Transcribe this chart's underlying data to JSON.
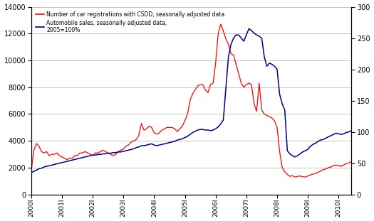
{
  "legend1": "Number of car registrations with CSDD, seasonally adjusted data",
  "legend2": "Automobile sales, seasonally adjusted data,\n2005=100%",
  "left_ylim": [
    0,
    14000
  ],
  "right_ylim": [
    0,
    300
  ],
  "left_yticks": [
    0,
    2000,
    4000,
    6000,
    8000,
    10000,
    12000,
    14000
  ],
  "right_yticks": [
    0,
    50,
    100,
    150,
    200,
    250,
    300
  ],
  "line1_color": "#FF0000",
  "line2_color": "#00008B",
  "background_color": "#FFFFFF",
  "x_labels": [
    "2000I",
    "2001I",
    "2002I",
    "2003I",
    "2004I",
    "2005I",
    "2006I",
    "2007I",
    "2008I",
    "2009I",
    "2010I"
  ],
  "registrations": [
    1800,
    3300,
    3800,
    3600,
    3200,
    3100,
    3200,
    2900,
    3000,
    3000,
    3100,
    2900,
    2800,
    2700,
    2600,
    2700,
    2700,
    2900,
    2900,
    3100,
    3100,
    3200,
    3100,
    3000,
    2900,
    3100,
    3100,
    3200,
    3300,
    3200,
    3100,
    3000,
    2900,
    3000,
    3200,
    3300,
    3400,
    3600,
    3700,
    3900,
    4000,
    4100,
    4400,
    5300,
    4800,
    4900,
    5100,
    5000,
    4600,
    4500,
    4600,
    4800,
    4900,
    5000,
    5000,
    5000,
    4900,
    4700,
    4900,
    5100,
    5500,
    6000,
    7000,
    7500,
    7800,
    8100,
    8200,
    8200,
    7800,
    7600,
    8200,
    8300,
    9800,
    12000,
    12700,
    12200,
    11600,
    11200,
    10500,
    10400,
    9700,
    9000,
    8300,
    8000,
    8200,
    8300,
    8200,
    6800,
    6200,
    8300,
    6300,
    6000,
    5900,
    5800,
    5700,
    5500,
    5000,
    3200,
    2000,
    1700,
    1500,
    1350,
    1400,
    1300,
    1350,
    1380,
    1320,
    1300,
    1380,
    1450,
    1520,
    1580,
    1650,
    1750,
    1850,
    1900,
    2000,
    2050,
    2150,
    2200,
    2150,
    2100,
    2200,
    2300,
    2350,
    2450
  ],
  "auto_sales": [
    35,
    37,
    39,
    41,
    42,
    44,
    45,
    46,
    47,
    48,
    49,
    50,
    51,
    52,
    53,
    54,
    55,
    56,
    57,
    58,
    59,
    60,
    61,
    62,
    63,
    63,
    64,
    64,
    65,
    65,
    66,
    66,
    67,
    67,
    68,
    68,
    69,
    70,
    71,
    72,
    73,
    75,
    76,
    78,
    78,
    79,
    80,
    81,
    79,
    78,
    79,
    80,
    81,
    82,
    83,
    84,
    85,
    87,
    88,
    89,
    91,
    93,
    96,
    99,
    101,
    103,
    104,
    104,
    103,
    103,
    102,
    103,
    105,
    108,
    113,
    119,
    170,
    220,
    240,
    250,
    255,
    255,
    250,
    245,
    255,
    265,
    262,
    258,
    255,
    253,
    250,
    220,
    205,
    210,
    208,
    205,
    200,
    160,
    145,
    135,
    70,
    65,
    62,
    60,
    62,
    65,
    68,
    70,
    72,
    77,
    80,
    82,
    85,
    87,
    88,
    90,
    92,
    94,
    96,
    98,
    97,
    96,
    97,
    99,
    100,
    102
  ]
}
